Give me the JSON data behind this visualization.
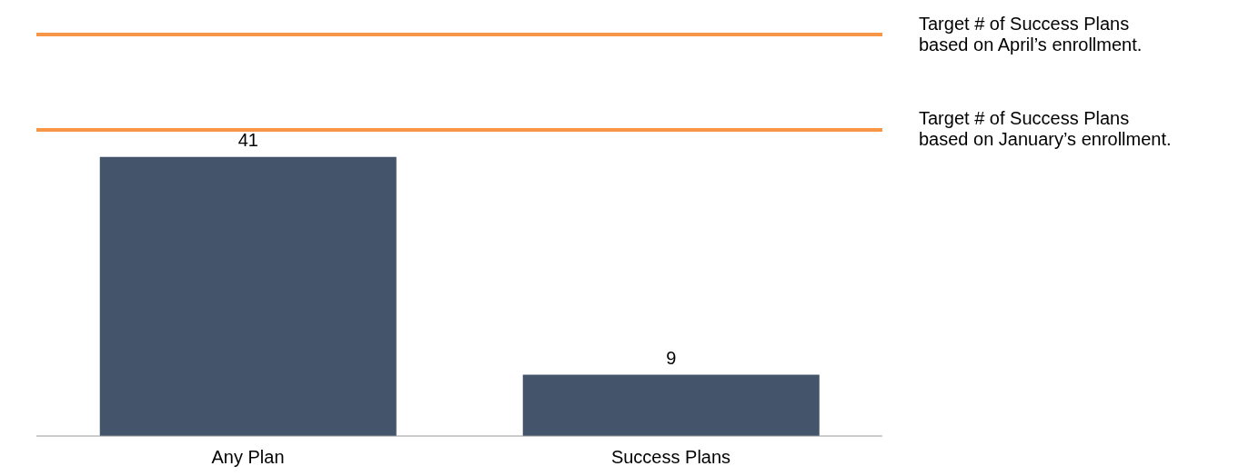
{
  "chart_data": {
    "type": "bar",
    "categories": [
      "Any Plan",
      "Success Plans"
    ],
    "values": [
      41,
      9
    ],
    "color": "#44546a",
    "data_labels": true,
    "tick_labels": "x",
    "grid": false,
    "legend": false,
    "ref_lines": [
      {
        "axis": "y",
        "value": 59,
        "label": "Target # of Success Plans\nbased on April’s enrollment.",
        "color": "#f79646"
      },
      {
        "axis": "y",
        "value": 45,
        "label": "Target # of Success Plans\nbased on January’s enrollment.",
        "color": "#f79646"
      }
    ]
  }
}
